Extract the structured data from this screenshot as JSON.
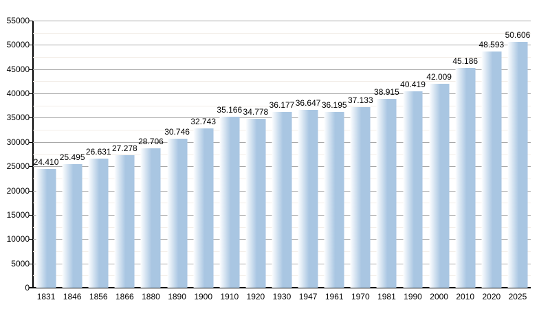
{
  "chart_data": {
    "type": "bar",
    "title": "",
    "xlabel": "",
    "ylabel": "",
    "categories": [
      "1831",
      "1846",
      "1856",
      "1866",
      "1880",
      "1890",
      "1900",
      "1910",
      "1920",
      "1930",
      "1947",
      "1961",
      "1970",
      "1981",
      "1990",
      "2000",
      "2010",
      "2020",
      "2025"
    ],
    "values": [
      24410,
      25495,
      26631,
      27278,
      28706,
      30746,
      32743,
      35166,
      34778,
      36177,
      36647,
      36195,
      37133,
      38915,
      40419,
      42009,
      45186,
      48593,
      50606
    ],
    "value_labels": [
      "24.410",
      "25.495",
      "26.631",
      "27.278",
      "28.706",
      "30.746",
      "32.743",
      "35.166",
      "34.778",
      "36.177",
      "36.647",
      "36.195",
      "37.133",
      "38.915",
      "40.419",
      "42.009",
      "45.186",
      "48.593",
      "50.606"
    ],
    "ylim": [
      0,
      55000
    ],
    "y_major_step": 5000,
    "y_minor_step": 2500,
    "y_tick_labels": [
      "0",
      "5000",
      "10000",
      "15000",
      "20000",
      "25000",
      "30000",
      "35000",
      "40000",
      "45000",
      "50000",
      "55000"
    ],
    "grid": true,
    "legend": "none",
    "colors": {
      "bar": "#a9c6e2",
      "bar_highlight": "#fdfeff",
      "grid_major": "#a8a8a8",
      "grid_minor": "#f2ede7",
      "axis": "#000000",
      "text": "#000000",
      "background": "#ffffff"
    }
  }
}
